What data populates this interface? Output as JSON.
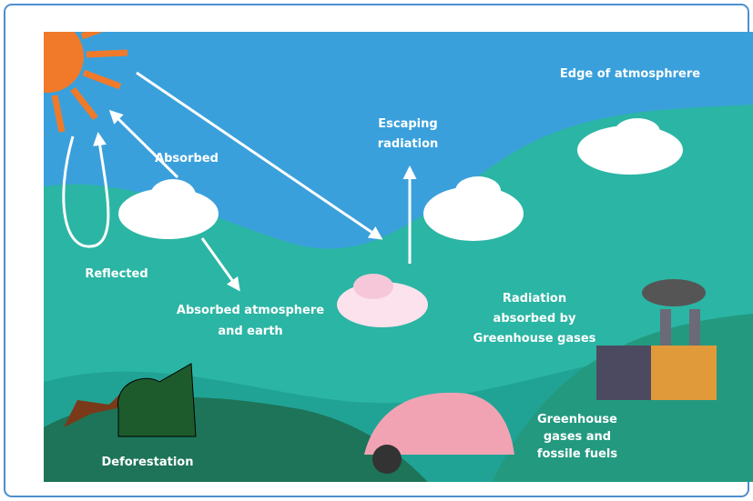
{
  "labels": {
    "edge": "Edge of atmosphrere",
    "escaping": [
      "Escaping",
      "radiation"
    ],
    "absorbed": "Absorbed",
    "reflected": "Reflected",
    "absorbed_earth": [
      "Absorbed atmosphere",
      "and earth"
    ],
    "greenhouse_absorbed": [
      "Radiation",
      "absorbed by",
      "Greenhouse gases"
    ],
    "fuels": [
      "Greenhouse",
      "gases and",
      "fossile fuels"
    ],
    "deforestation": "Deforestation"
  }
}
